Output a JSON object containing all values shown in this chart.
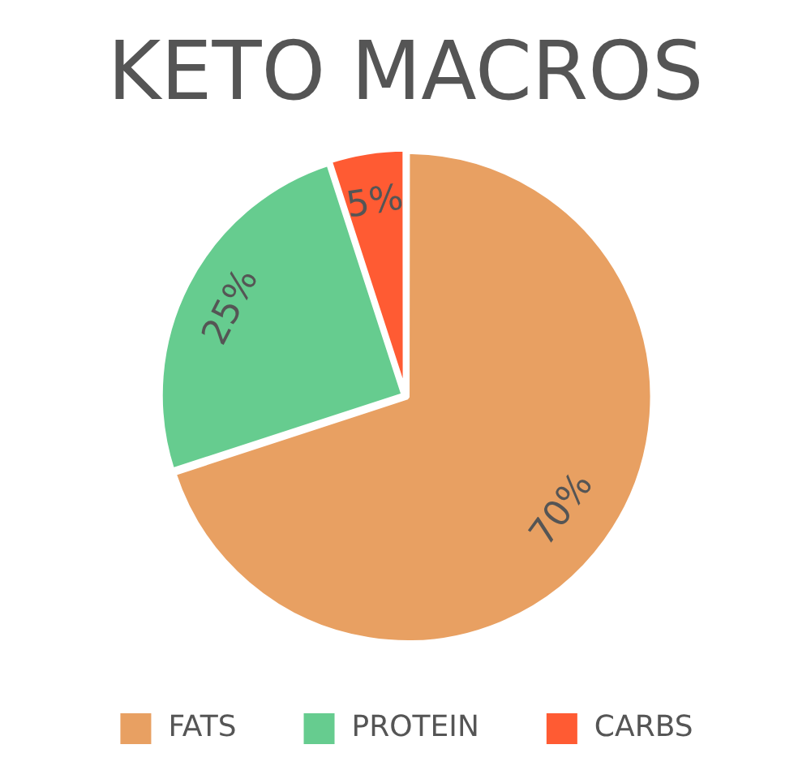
{
  "chart_data": {
    "type": "pie",
    "title": "KETO MACROS",
    "categories": [
      "FATS",
      "PROTEIN",
      "CARBS"
    ],
    "values": [
      70,
      25,
      5
    ],
    "colors": [
      "#e8a062",
      "#66cc8f",
      "#ff5b33"
    ],
    "value_labels": [
      "70%",
      "25%",
      "5%"
    ],
    "legend": "bottom"
  }
}
